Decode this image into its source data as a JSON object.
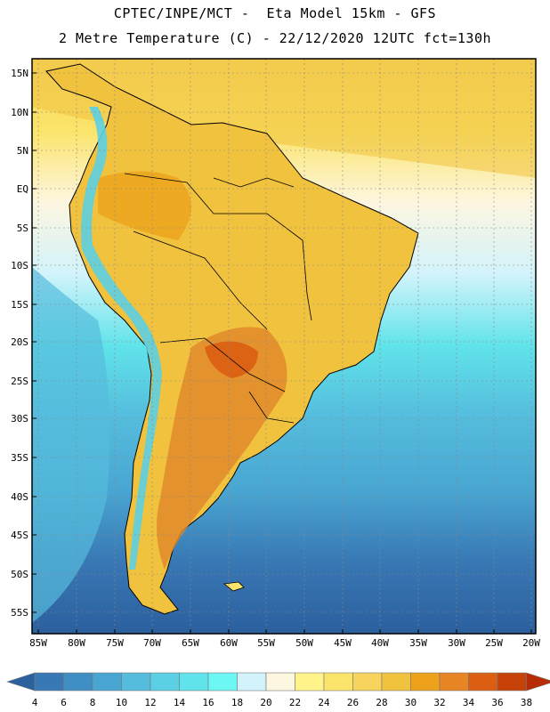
{
  "title": {
    "line1": "CPTEC/INPE/MCT -  Eta Model 15km - GFS",
    "line2": "2 Metre Temperature (C) - 22/12/2020 12UTC fct=130h"
  },
  "axes": {
    "lat_labels": [
      "15N",
      "10N",
      "5N",
      "EQ",
      "5S",
      "10S",
      "15S",
      "20S",
      "25S",
      "30S",
      "35S",
      "40S",
      "45S",
      "50S",
      "55S"
    ],
    "lon_labels": [
      "85W",
      "80W",
      "75W",
      "70W",
      "65W",
      "60W",
      "55W",
      "50W",
      "45W",
      "40W",
      "35W",
      "30W",
      "25W",
      "20W"
    ]
  },
  "colorbar": {
    "labels": [
      "4",
      "6",
      "8",
      "10",
      "12",
      "14",
      "16",
      "18",
      "20",
      "22",
      "24",
      "26",
      "28",
      "30",
      "32",
      "34",
      "36",
      "38"
    ],
    "colors": [
      "#2c5f9e",
      "#3878b4",
      "#3f8fc4",
      "#49a6d2",
      "#55bcdd",
      "#5bcfe3",
      "#60e3ea",
      "#6cf7f5",
      "#d2f3fb",
      "#fdf6e0",
      "#fff38a",
      "#fbe46a",
      "#f6d45e",
      "#f1c23e",
      "#eea21b",
      "#e88524",
      "#dc5e12",
      "#c64209",
      "#b52c06"
    ]
  },
  "map": {
    "ocean_gradient": [
      "#f6d45e",
      "#fbe46a",
      "#fdf6e0",
      "#d2f3fb",
      "#60e3ea",
      "#55bcdd",
      "#49a6d2",
      "#3878b4",
      "#2c5f9e"
    ],
    "land_hot": "#e08a2c",
    "land_warm": "#f1c23e",
    "andes": "#5bcfe3"
  }
}
